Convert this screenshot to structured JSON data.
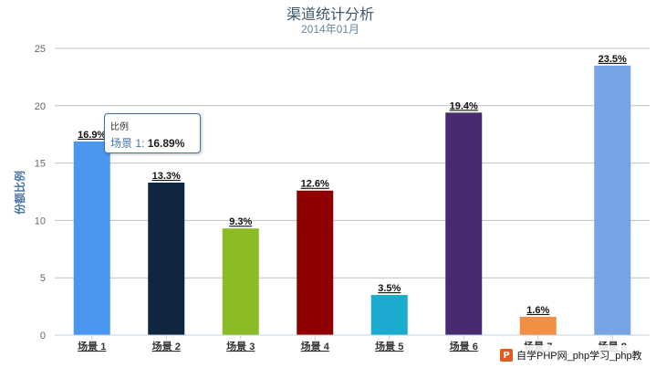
{
  "chart_data": {
    "type": "bar",
    "title": "渠道统计分析",
    "subtitle": "2014年01月",
    "ylabel": "份额比例",
    "ylim": [
      0,
      25
    ],
    "yticks": [
      0,
      5,
      10,
      15,
      20,
      25
    ],
    "grid": true,
    "categories": [
      "场景 1",
      "场景 2",
      "场景 3",
      "场景 4",
      "场景 5",
      "场景 6",
      "场景 7",
      "场景 8"
    ],
    "values": [
      16.89,
      13.3,
      9.3,
      12.6,
      3.5,
      19.4,
      1.6,
      23.5
    ],
    "data_labels": [
      "16.9%",
      "13.3%",
      "9.3%",
      "12.6%",
      "3.5%",
      "19.4%",
      "1.6%",
      "23.5%"
    ],
    "colors": [
      "#4a96f0",
      "#0f2540",
      "#8cbb23",
      "#8f0000",
      "#1aabce",
      "#482a6f",
      "#f28f43",
      "#76a4e6"
    ]
  },
  "tooltip": {
    "title": "比例",
    "series": "场景 1",
    "value": "16.89%"
  },
  "watermark": {
    "icon": "P",
    "text": "自学PHP网_php学习_php教"
  }
}
